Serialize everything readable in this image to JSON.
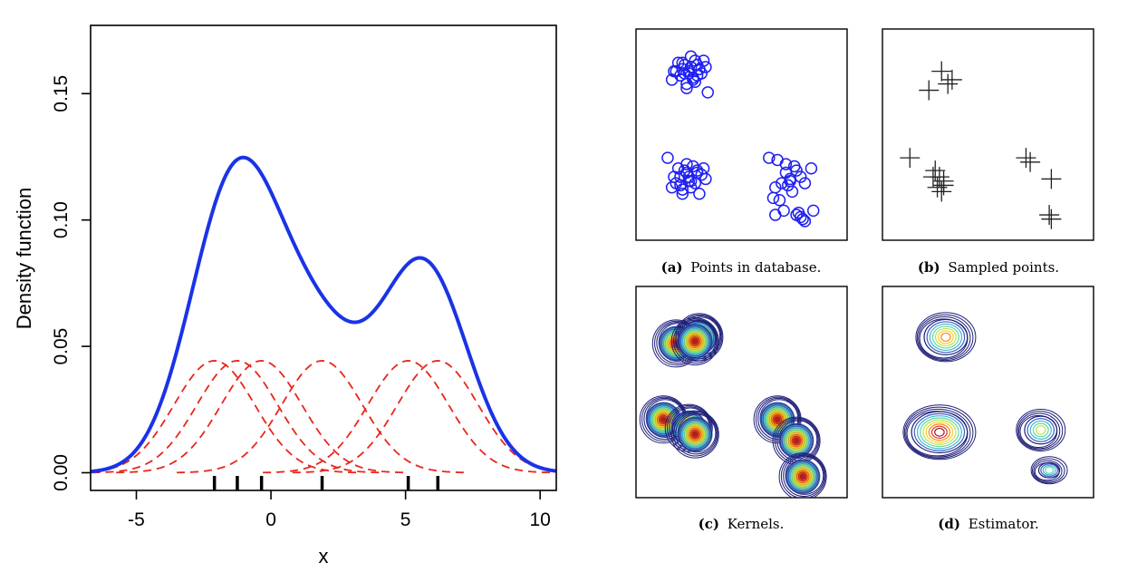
{
  "chart_data": [
    {
      "type": "line",
      "title": "",
      "xlabel": "x",
      "ylabel": "Density function",
      "xlim": [
        -6.7,
        10.6
      ],
      "ylim": [
        -0.007,
        0.177
      ],
      "xticks": [
        -5,
        0,
        5,
        10
      ],
      "xtick_labels": [
        "-5",
        "0",
        "5",
        "10"
      ],
      "yticks": [
        0.0,
        0.05,
        0.1,
        0.15
      ],
      "ytick_labels": [
        "0.00",
        "0.05",
        "0.10",
        "0.15"
      ],
      "grid": false,
      "colors": {
        "estimate": "#1a33e6",
        "kernels": "#e8261b",
        "rug": "#000000",
        "axis": "#000000"
      },
      "samples": [
        -2.1,
        -1.25,
        -0.35,
        1.9,
        5.1,
        6.2
      ],
      "kernel_bandwidth": 1.5,
      "kernel_peak": 0.0443,
      "series": [
        {
          "kind": "estimate",
          "style": "solid"
        },
        {
          "kind": "kernels",
          "style": "dashed"
        },
        {
          "kind": "rug",
          "style": "ticks"
        }
      ]
    },
    {
      "type": "scatter",
      "caption_label": "(a)",
      "caption_text": "Points in database.",
      "marker": "circle",
      "color": "#1f1ff0",
      "xlim": [
        0,
        1
      ],
      "ylim": [
        0,
        1
      ],
      "clusters": [
        {
          "x": [
            0.2,
            0.26,
            0.25,
            0.17,
            0.33,
            0.29,
            0.22,
            0.24,
            0.28,
            0.31,
            0.19,
            0.23,
            0.27,
            0.3,
            0.21,
            0.26,
            0.24,
            0.32,
            0.18,
            0.28,
            0.25,
            0.22,
            0.29,
            0.27,
            0.23,
            0.34
          ],
          "y": [
            0.84,
            0.87,
            0.8,
            0.76,
            0.82,
            0.78,
            0.81,
            0.74,
            0.85,
            0.79,
            0.8,
            0.83,
            0.77,
            0.81,
            0.78,
            0.82,
            0.72,
            0.85,
            0.8,
            0.75,
            0.79,
            0.84,
            0.83,
            0.76,
            0.79,
            0.7
          ]
        },
        {
          "x": [
            0.15,
            0.2,
            0.24,
            0.29,
            0.21,
            0.25,
            0.31,
            0.19,
            0.26,
            0.22,
            0.28,
            0.33,
            0.23,
            0.18,
            0.3,
            0.25,
            0.27,
            0.21,
            0.24,
            0.29,
            0.17,
            0.32,
            0.26,
            0.22
          ],
          "y": [
            0.39,
            0.34,
            0.32,
            0.33,
            0.3,
            0.28,
            0.31,
            0.27,
            0.25,
            0.24,
            0.27,
            0.29,
            0.33,
            0.3,
            0.22,
            0.3,
            0.35,
            0.26,
            0.36,
            0.32,
            0.25,
            0.34,
            0.28,
            0.22
          ]
        },
        {
          "x": [
            0.63,
            0.67,
            0.71,
            0.75,
            0.66,
            0.73,
            0.69,
            0.78,
            0.8,
            0.76,
            0.72,
            0.68,
            0.74,
            0.65,
            0.83,
            0.79,
            0.7,
            0.77,
            0.73,
            0.71,
            0.76,
            0.8,
            0.66,
            0.78,
            0.84
          ],
          "y": [
            0.39,
            0.38,
            0.32,
            0.35,
            0.25,
            0.28,
            0.27,
            0.3,
            0.27,
            0.33,
            0.26,
            0.19,
            0.23,
            0.2,
            0.34,
            0.1,
            0.14,
            0.13,
            0.29,
            0.36,
            0.12,
            0.09,
            0.12,
            0.11,
            0.14
          ]
        }
      ]
    },
    {
      "type": "scatter",
      "caption_label": "(b)",
      "caption_text": "Sampled points.",
      "marker": "plus",
      "color": "#202020",
      "xlim": [
        0,
        1
      ],
      "ylim": [
        0,
        1
      ],
      "x": [
        0.28,
        0.31,
        0.33,
        0.22,
        0.13,
        0.25,
        0.27,
        0.29,
        0.24,
        0.26,
        0.28,
        0.29,
        0.68,
        0.7,
        0.8,
        0.79,
        0.8
      ],
      "y": [
        0.8,
        0.74,
        0.76,
        0.71,
        0.39,
        0.33,
        0.3,
        0.26,
        0.3,
        0.25,
        0.23,
        0.28,
        0.39,
        0.37,
        0.29,
        0.12,
        0.1
      ]
    },
    {
      "type": "heatmap",
      "caption_label": "(c)",
      "caption_text": "Kernels.",
      "xlim": [
        0,
        1
      ],
      "ylim": [
        0,
        1
      ],
      "x": [
        0.19,
        0.3,
        0.28,
        0.13,
        0.25,
        0.28,
        0.67,
        0.76,
        0.79
      ],
      "y": [
        0.73,
        0.76,
        0.74,
        0.37,
        0.33,
        0.3,
        0.37,
        0.27,
        0.1
      ],
      "color_ramp": [
        "#1e1e78",
        "#3c5fc8",
        "#3fb8d8",
        "#62d9a0",
        "#bfe04a",
        "#f5d21e",
        "#f08a1e",
        "#e0321e",
        "#a01e1e"
      ]
    },
    {
      "type": "heatmap",
      "caption_label": "(d)",
      "caption_text": "Estimator.",
      "xlim": [
        0,
        1
      ],
      "ylim": [
        0,
        1
      ],
      "color_ramp": [
        "#1e1e78",
        "#3c5fc8",
        "#3fb8d8",
        "#62d9a0",
        "#bfe04a",
        "#f5d21e",
        "#f08a1e",
        "#e0321e",
        "#a01e1e"
      ]
    }
  ]
}
